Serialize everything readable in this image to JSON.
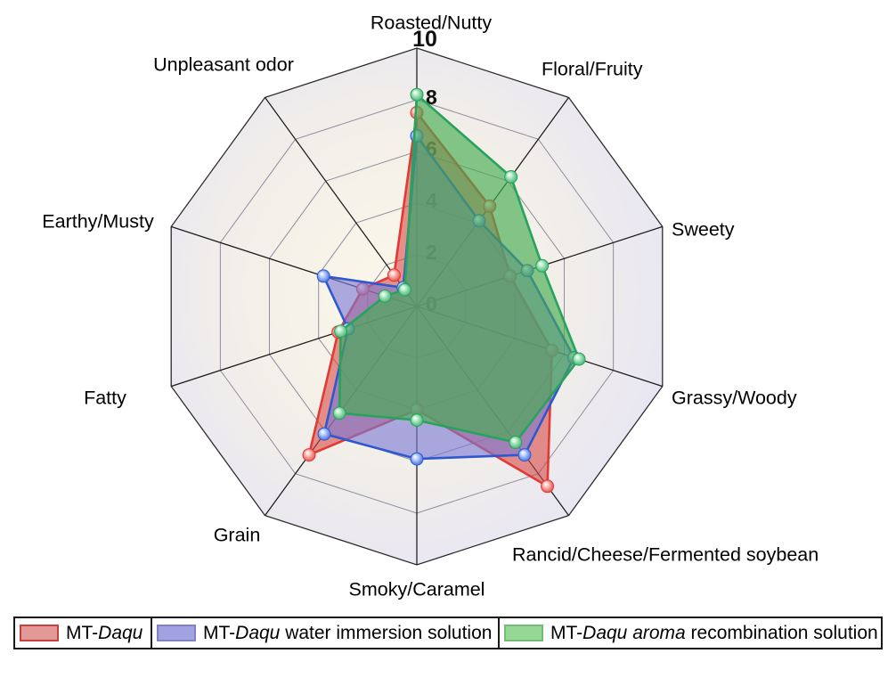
{
  "page": {
    "background": "#ffffff"
  },
  "chart_data": {
    "type": "radar",
    "title": "",
    "categories": [
      "Roasted/Nutty",
      "Floral/Fruity",
      "Sweety",
      "Grassy/Woody",
      "Rancid/Cheese/Fermented soybean",
      "Smoky/Caramel",
      "Grain",
      "Fatty",
      "Earthy/Musty",
      "Unpleasant odor"
    ],
    "ticks": [
      0,
      2,
      4,
      6,
      8,
      10
    ],
    "rmax": 10,
    "grid": true,
    "legend_position": "bottom",
    "series": [
      {
        "name": "MT-Daqu",
        "name_parts": [
          {
            "text": "MT-",
            "italic": false
          },
          {
            "text": "Daqu",
            "italic": true
          }
        ],
        "values": [
          7.5,
          4.8,
          3.8,
          5.5,
          8.6,
          4.0,
          7.1,
          3.2,
          2.2,
          1.5
        ],
        "line_color": "#e23934",
        "fill_color": "#d64542",
        "fill_opacity": 0.58,
        "marker_color": "#e03a35",
        "marker_highlight": "#ffd2cc",
        "swatch_fill": "#e39a97",
        "swatch_border": "#c4413d"
      },
      {
        "name": "MT-Daqu water immersion solution",
        "name_parts": [
          {
            "text": "MT-",
            "italic": false
          },
          {
            "text": "Daqu",
            "italic": true
          },
          {
            "text": " water immersion solution",
            "italic": false
          }
        ],
        "values": [
          6.6,
          4.1,
          4.5,
          6.4,
          7.1,
          5.9,
          6.1,
          2.8,
          3.8,
          0.9
        ],
        "line_color": "#2e57d0",
        "fill_color": "#7b79d4",
        "fill_opacity": 0.62,
        "marker_color": "#2d5fd6",
        "marker_highlight": "#cdddff",
        "swatch_fill": "#a2a2e2",
        "swatch_border": "#8181c6"
      },
      {
        "name": "MT-Daqu aroma recombination solution",
        "name_parts": [
          {
            "text": "MT-",
            "italic": false
          },
          {
            "text": "Daqu aroma",
            "italic": true
          },
          {
            "text": " recombination solution",
            "italic": false
          }
        ],
        "values": [
          8.2,
          6.2,
          5.1,
          6.6,
          6.5,
          4.4,
          5.1,
          3.1,
          1.3,
          0.8
        ],
        "line_color": "#27a35d",
        "fill_color": "#47ab52",
        "fill_opacity": 0.66,
        "marker_color": "#2fa863",
        "marker_highlight": "#c4f2d2",
        "swatch_fill": "#95d795",
        "swatch_border": "#78b978"
      }
    ],
    "axis_colors": {
      "grid_ring": "#8f8e9e",
      "spoke": "#1b1b1b",
      "outline": "#2a2a2a",
      "tick_label": "#111111",
      "category_label": "#000000"
    },
    "background_gradient": [
      "#fbf7e9",
      "#f2efe9",
      "#e7e5f3",
      "#e1e0f5"
    ]
  }
}
